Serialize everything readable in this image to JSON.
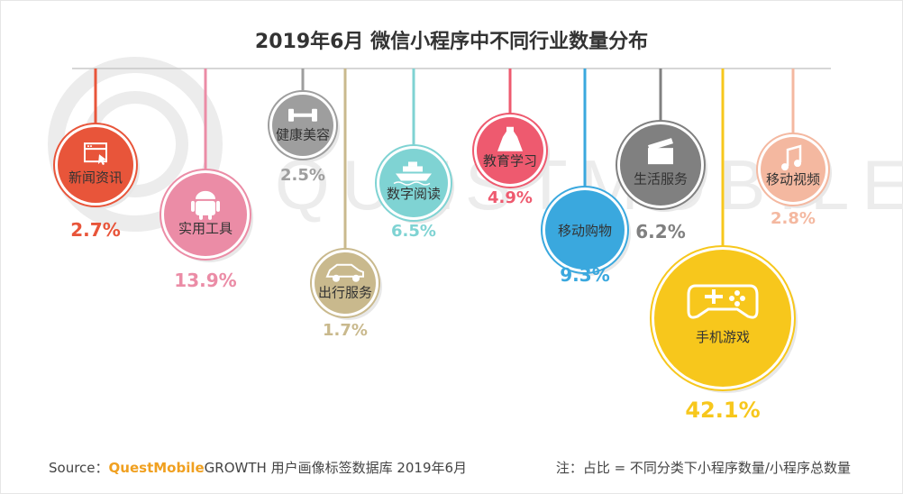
{
  "title": "2019年6月 微信小程序中不同行业数量分布",
  "watermark": "QUESTMOBILE",
  "footer": {
    "source_prefix": "Source：",
    "source_brand": "QuestMobile",
    "source_rest": "GROWTH 用户画像标签数据库  2019年6月",
    "note": "注：占比 = 不同分类下小程序数量/小程序总数量"
  },
  "chart_data": {
    "type": "bubble-ornament",
    "unit": "%",
    "items": [
      {
        "name": "新闻资讯",
        "value": 2.7,
        "label": "2.7%",
        "color": "#e8553a",
        "icon": "browser-window-icon"
      },
      {
        "name": "实用工具",
        "value": 13.9,
        "label": "13.9%",
        "color": "#eb8ca6",
        "icon": "android-icon"
      },
      {
        "name": "健康美容",
        "value": 2.5,
        "label": "2.5%",
        "color": "#9e9e9e",
        "icon": "dumbbell-icon"
      },
      {
        "name": "出行服务",
        "value": 1.7,
        "label": "1.7%",
        "color": "#c9b98d",
        "icon": "car-icon"
      },
      {
        "name": "数字阅读",
        "value": 6.5,
        "label": "6.5%",
        "color": "#7fd3d3",
        "icon": "ship-icon"
      },
      {
        "name": "教育学习",
        "value": 4.9,
        "label": "4.9%",
        "color": "#ee5a6f",
        "icon": "dress-icon"
      },
      {
        "name": "移动购物",
        "value": 9.3,
        "label": "9.3%",
        "color": "#3aa8de",
        "icon": ""
      },
      {
        "name": "生活服务",
        "value": 6.2,
        "label": "6.2%",
        "color": "#808080",
        "icon": "clapperboard-icon"
      },
      {
        "name": "手机游戏",
        "value": 42.1,
        "label": "42.1%",
        "color": "#f7c71c",
        "icon": "gamepad-icon"
      },
      {
        "name": "移动视频",
        "value": 2.8,
        "label": "2.8%",
        "color": "#f4b8a0",
        "icon": "music-note-icon"
      }
    ]
  }
}
